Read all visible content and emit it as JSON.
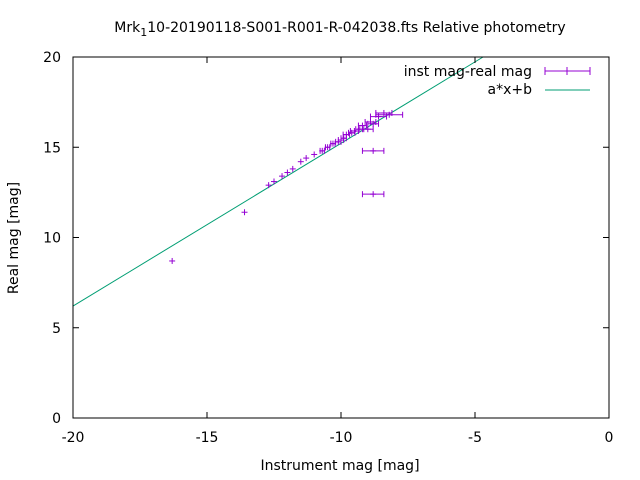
{
  "chart_data": {
    "type": "scatter",
    "title_parts": [
      "Mrk",
      "1",
      "10-20190118-S001-R001-R-042038.fts Relative photometry"
    ],
    "xlabel": "Instrument mag [mag]",
    "ylabel": "Real mag [mag]",
    "xlim": [
      -20,
      0
    ],
    "ylim": [
      0,
      20
    ],
    "x_ticks": [
      -20,
      -15,
      -10,
      -5,
      0
    ],
    "x_tick_labels": [
      "-20",
      "-15",
      "-10",
      "-5",
      "0"
    ],
    "y_ticks": [
      0,
      5,
      10,
      15,
      20
    ],
    "y_tick_labels": [
      "0",
      "5",
      "10",
      "15",
      "20"
    ],
    "grid": false,
    "legend_position": "top-right",
    "colors": {
      "points": "#9400d3",
      "fit": "#009e73",
      "axes": "#000000"
    },
    "series": [
      {
        "name": "inst mag-real mag",
        "kind": "points-xerror",
        "points": [
          {
            "x": -16.3,
            "y": 8.7,
            "xerr": 0.05
          },
          {
            "x": -13.6,
            "y": 11.4,
            "xerr": 0.05
          },
          {
            "x": -12.7,
            "y": 12.9,
            "xerr": 0.05
          },
          {
            "x": -12.5,
            "y": 13.1,
            "xerr": 0.05
          },
          {
            "x": -12.2,
            "y": 13.4,
            "xerr": 0.05
          },
          {
            "x": -12.0,
            "y": 13.6,
            "xerr": 0.05
          },
          {
            "x": -11.8,
            "y": 13.8,
            "xerr": 0.05
          },
          {
            "x": -11.5,
            "y": 14.2,
            "xerr": 0.05
          },
          {
            "x": -11.3,
            "y": 14.4,
            "xerr": 0.05
          },
          {
            "x": -11.0,
            "y": 14.6,
            "xerr": 0.05
          },
          {
            "x": -10.7,
            "y": 14.8,
            "xerr": 0.08
          },
          {
            "x": -10.5,
            "y": 15.0,
            "xerr": 0.08
          },
          {
            "x": -10.3,
            "y": 15.2,
            "xerr": 0.08
          },
          {
            "x": -10.1,
            "y": 15.3,
            "xerr": 0.1
          },
          {
            "x": -10.0,
            "y": 15.4,
            "xerr": 0.1
          },
          {
            "x": -9.9,
            "y": 15.5,
            "xerr": 0.1
          },
          {
            "x": -9.8,
            "y": 15.7,
            "xerr": 0.12
          },
          {
            "x": -9.6,
            "y": 15.8,
            "xerr": 0.12
          },
          {
            "x": -9.5,
            "y": 15.9,
            "xerr": 0.15
          },
          {
            "x": -9.3,
            "y": 16.0,
            "xerr": 0.15
          },
          {
            "x": -9.2,
            "y": 16.2,
            "xerr": 0.15
          },
          {
            "x": -9.0,
            "y": 16.0,
            "xerr": 0.2
          },
          {
            "x": -8.9,
            "y": 16.4,
            "xerr": 0.2
          },
          {
            "x": -8.8,
            "y": 16.3,
            "xerr": 0.2
          },
          {
            "x": -8.6,
            "y": 16.7,
            "xerr": 0.3
          },
          {
            "x": -8.4,
            "y": 16.9,
            "xerr": 0.3
          },
          {
            "x": -8.2,
            "y": 16.8,
            "xerr": 0.5
          },
          {
            "x": -8.8,
            "y": 14.8,
            "xerr": 0.4
          },
          {
            "x": -8.8,
            "y": 12.4,
            "xerr": 0.4
          }
        ]
      },
      {
        "name": "a*x+b",
        "kind": "line",
        "x": [
          -20,
          -4.7
        ],
        "y": [
          6.2,
          20.0
        ]
      }
    ]
  }
}
